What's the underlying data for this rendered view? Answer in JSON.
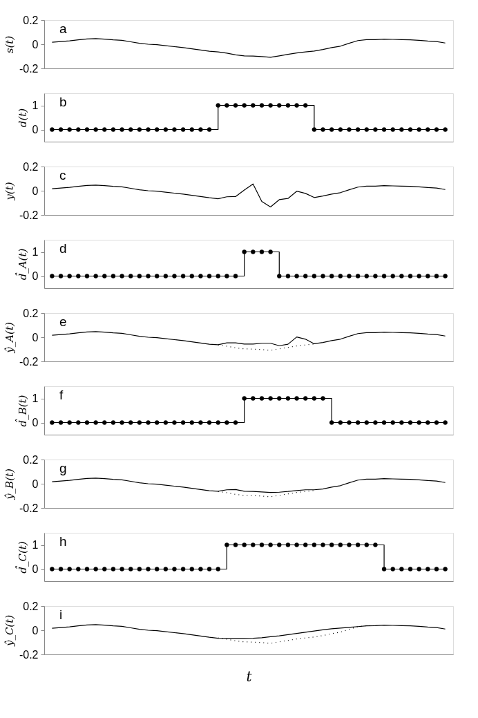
{
  "chart_data": [
    {
      "type": "line",
      "ylabel": "s(t)",
      "annotations": [
        "a"
      ],
      "ylim": [
        -0.2,
        0.2
      ],
      "yticks": [
        -0.2,
        0,
        0.2
      ],
      "tick_labels": "y",
      "categories": [
        null,
        null,
        null,
        null,
        null,
        null,
        null,
        null,
        null,
        null,
        null,
        null,
        null,
        null,
        null,
        null,
        null,
        null,
        null,
        null,
        null,
        null,
        null,
        null,
        null,
        null,
        null,
        null,
        null,
        null,
        null,
        null,
        null,
        null,
        null,
        null,
        null,
        null,
        null,
        null,
        null,
        null,
        null,
        null,
        null,
        null
      ],
      "series": [
        {
          "color": "#000000",
          "values": [
            0.016,
            0.022,
            0.028,
            0.036,
            0.044,
            0.046,
            0.042,
            0.036,
            0.032,
            0.02,
            0.008,
            0,
            -0.004,
            -0.012,
            -0.02,
            -0.028,
            -0.038,
            -0.048,
            -0.058,
            -0.064,
            -0.074,
            -0.088,
            -0.096,
            -0.098,
            -0.102,
            -0.108,
            -0.096,
            -0.084,
            -0.072,
            -0.064,
            -0.056,
            -0.044,
            -0.028,
            -0.016,
            0.008,
            0.03,
            0.038,
            0.038,
            0.042,
            0.04,
            0.038,
            0.036,
            0.032,
            0.026,
            0.022,
            0.01
          ]
        }
      ]
    },
    {
      "type": "step",
      "ylabel": "d(t)",
      "annotations": [
        "b"
      ],
      "marker": "circle",
      "ylim": [
        -0.5,
        1.5
      ],
      "yticks": [
        0,
        1
      ],
      "tick_labels": "y",
      "categories": [
        null,
        null,
        null,
        null,
        null,
        null,
        null,
        null,
        null,
        null,
        null,
        null,
        null,
        null,
        null,
        null,
        null,
        null,
        null,
        null,
        null,
        null,
        null,
        null,
        null,
        null,
        null,
        null,
        null,
        null,
        null,
        null,
        null,
        null,
        null,
        null,
        null,
        null,
        null,
        null,
        null,
        null,
        null,
        null,
        null,
        null
      ],
      "series": [
        {
          "color": "#000000",
          "values": [
            0,
            0,
            0,
            0,
            0,
            0,
            0,
            0,
            0,
            0,
            0,
            0,
            0,
            0,
            0,
            0,
            0,
            0,
            0,
            1,
            1,
            1,
            1,
            1,
            1,
            1,
            1,
            1,
            1,
            1,
            0,
            0,
            0,
            0,
            0,
            0,
            0,
            0,
            0,
            0,
            0,
            0,
            0,
            0,
            0,
            0
          ]
        }
      ]
    },
    {
      "type": "line",
      "ylabel": "y(t)",
      "annotations": [
        "c"
      ],
      "ylim": [
        -0.2,
        0.2
      ],
      "yticks": [
        -0.2,
        0,
        0.2
      ],
      "tick_labels": "y",
      "categories": [
        null,
        null,
        null,
        null,
        null,
        null,
        null,
        null,
        null,
        null,
        null,
        null,
        null,
        null,
        null,
        null,
        null,
        null,
        null,
        null,
        null,
        null,
        null,
        null,
        null,
        null,
        null,
        null,
        null,
        null,
        null,
        null,
        null,
        null,
        null,
        null,
        null,
        null,
        null,
        null,
        null,
        null,
        null,
        null,
        null,
        null
      ],
      "series": [
        {
          "color": "#000000",
          "values": [
            0.016,
            0.022,
            0.028,
            0.036,
            0.044,
            0.046,
            0.042,
            0.036,
            0.032,
            0.02,
            0.008,
            0,
            -0.004,
            -0.012,
            -0.02,
            -0.028,
            -0.038,
            -0.048,
            -0.058,
            -0.066,
            -0.05,
            -0.048,
            0.006,
            0.056,
            -0.088,
            -0.134,
            -0.074,
            -0.064,
            -0.004,
            -0.022,
            -0.056,
            -0.044,
            -0.028,
            -0.016,
            0.008,
            0.03,
            0.038,
            0.038,
            0.042,
            0.04,
            0.038,
            0.036,
            0.032,
            0.026,
            0.022,
            0.01
          ]
        }
      ]
    },
    {
      "type": "step",
      "ylabel": "d̂_A(t)",
      "annotations": [
        "d"
      ],
      "marker": "circle",
      "ylim": [
        -0.5,
        1.5
      ],
      "yticks": [
        0,
        1
      ],
      "tick_labels": "y",
      "categories": [
        null,
        null,
        null,
        null,
        null,
        null,
        null,
        null,
        null,
        null,
        null,
        null,
        null,
        null,
        null,
        null,
        null,
        null,
        null,
        null,
        null,
        null,
        null,
        null,
        null,
        null,
        null,
        null,
        null,
        null,
        null,
        null,
        null,
        null,
        null,
        null,
        null,
        null,
        null,
        null,
        null,
        null,
        null,
        null,
        null,
        null
      ],
      "series": [
        {
          "color": "#000000",
          "values": [
            0,
            0,
            0,
            0,
            0,
            0,
            0,
            0,
            0,
            0,
            0,
            0,
            0,
            0,
            0,
            0,
            0,
            0,
            0,
            0,
            0,
            0,
            1,
            1,
            1,
            1,
            0,
            0,
            0,
            0,
            0,
            0,
            0,
            0,
            0,
            0,
            0,
            0,
            0,
            0,
            0,
            0,
            0,
            0,
            0,
            0
          ]
        }
      ]
    },
    {
      "type": "line",
      "ylabel": "ŷ_A(t)",
      "annotations": [
        "e"
      ],
      "ylim": [
        -0.2,
        0.2
      ],
      "yticks": [
        -0.2,
        0,
        0.2
      ],
      "tick_labels": "y",
      "categories": [
        null,
        null,
        null,
        null,
        null,
        null,
        null,
        null,
        null,
        null,
        null,
        null,
        null,
        null,
        null,
        null,
        null,
        null,
        null,
        null,
        null,
        null,
        null,
        null,
        null,
        null,
        null,
        null,
        null,
        null,
        null,
        null,
        null,
        null,
        null,
        null,
        null,
        null,
        null,
        null,
        null,
        null,
        null,
        null,
        null,
        null
      ],
      "series": [
        {
          "color": "#000000",
          "values": [
            0.016,
            0.022,
            0.028,
            0.036,
            0.044,
            0.046,
            0.042,
            0.036,
            0.032,
            0.02,
            0.008,
            0,
            -0.004,
            -0.012,
            -0.02,
            -0.028,
            -0.038,
            -0.048,
            -0.058,
            -0.062,
            -0.046,
            -0.046,
            -0.056,
            -0.056,
            -0.05,
            -0.05,
            -0.07,
            -0.058,
            0.002,
            -0.016,
            -0.054,
            -0.044,
            -0.028,
            -0.016,
            0.008,
            0.03,
            0.038,
            0.038,
            0.042,
            0.04,
            0.038,
            0.036,
            0.032,
            0.026,
            0.022,
            0.01
          ]
        },
        {
          "color": "#000000",
          "line_style": "dotted",
          "values": [
            null,
            null,
            null,
            null,
            null,
            null,
            null,
            null,
            null,
            null,
            null,
            null,
            null,
            null,
            null,
            null,
            null,
            null,
            null,
            -0.064,
            -0.074,
            -0.088,
            -0.096,
            -0.098,
            -0.102,
            -0.108,
            -0.096,
            -0.084,
            -0.072,
            -0.064,
            -0.056,
            null,
            null,
            null,
            null,
            null,
            null,
            null,
            null,
            null,
            null,
            null,
            null,
            null,
            null,
            null
          ]
        }
      ]
    },
    {
      "type": "step",
      "ylabel": "d̂_B(t)",
      "annotations": [
        "f"
      ],
      "marker": "circle",
      "ylim": [
        -0.5,
        1.5
      ],
      "yticks": [
        0,
        1
      ],
      "tick_labels": "y",
      "categories": [
        null,
        null,
        null,
        null,
        null,
        null,
        null,
        null,
        null,
        null,
        null,
        null,
        null,
        null,
        null,
        null,
        null,
        null,
        null,
        null,
        null,
        null,
        null,
        null,
        null,
        null,
        null,
        null,
        null,
        null,
        null,
        null,
        null,
        null,
        null,
        null,
        null,
        null,
        null,
        null,
        null,
        null,
        null,
        null,
        null,
        null
      ],
      "series": [
        {
          "color": "#000000",
          "values": [
            0,
            0,
            0,
            0,
            0,
            0,
            0,
            0,
            0,
            0,
            0,
            0,
            0,
            0,
            0,
            0,
            0,
            0,
            0,
            0,
            0,
            0,
            1,
            1,
            1,
            1,
            1,
            1,
            1,
            1,
            1,
            1,
            0,
            0,
            0,
            0,
            0,
            0,
            0,
            0,
            0,
            0,
            0,
            0,
            0,
            0
          ]
        }
      ]
    },
    {
      "type": "line",
      "ylabel": "ŷ_B(t)",
      "annotations": [
        "g"
      ],
      "ylim": [
        -0.2,
        0.2
      ],
      "yticks": [
        -0.2,
        0,
        0.2
      ],
      "tick_labels": "y",
      "categories": [
        null,
        null,
        null,
        null,
        null,
        null,
        null,
        null,
        null,
        null,
        null,
        null,
        null,
        null,
        null,
        null,
        null,
        null,
        null,
        null,
        null,
        null,
        null,
        null,
        null,
        null,
        null,
        null,
        null,
        null,
        null,
        null,
        null,
        null,
        null,
        null,
        null,
        null,
        null,
        null,
        null,
        null,
        null,
        null,
        null,
        null
      ],
      "series": [
        {
          "color": "#000000",
          "values": [
            0.016,
            0.022,
            0.028,
            0.036,
            0.044,
            0.046,
            0.042,
            0.036,
            0.032,
            0.02,
            0.008,
            0,
            -0.004,
            -0.012,
            -0.02,
            -0.028,
            -0.038,
            -0.048,
            -0.058,
            -0.062,
            -0.05,
            -0.048,
            -0.062,
            -0.064,
            -0.068,
            -0.072,
            -0.07,
            -0.064,
            -0.056,
            -0.05,
            -0.05,
            -0.044,
            -0.028,
            -0.016,
            0.008,
            0.03,
            0.038,
            0.038,
            0.042,
            0.04,
            0.038,
            0.036,
            0.032,
            0.026,
            0.022,
            0.01
          ]
        },
        {
          "color": "#000000",
          "line_style": "dotted",
          "values": [
            null,
            null,
            null,
            null,
            null,
            null,
            null,
            null,
            null,
            null,
            null,
            null,
            null,
            null,
            null,
            null,
            null,
            null,
            null,
            -0.064,
            -0.074,
            -0.088,
            -0.096,
            -0.098,
            -0.102,
            -0.108,
            -0.096,
            -0.084,
            -0.072,
            -0.064,
            -0.056,
            null,
            null,
            null,
            null,
            null,
            null,
            null,
            null,
            null,
            null,
            null,
            null,
            null,
            null,
            null
          ]
        }
      ]
    },
    {
      "type": "step",
      "ylabel": "d̂_C(t)",
      "annotations": [
        "h"
      ],
      "marker": "circle",
      "ylim": [
        -0.5,
        1.5
      ],
      "yticks": [
        0,
        1
      ],
      "tick_labels": "y",
      "categories": [
        null,
        null,
        null,
        null,
        null,
        null,
        null,
        null,
        null,
        null,
        null,
        null,
        null,
        null,
        null,
        null,
        null,
        null,
        null,
        null,
        null,
        null,
        null,
        null,
        null,
        null,
        null,
        null,
        null,
        null,
        null,
        null,
        null,
        null,
        null,
        null,
        null,
        null,
        null,
        null,
        null,
        null,
        null,
        null,
        null,
        null
      ],
      "series": [
        {
          "color": "#000000",
          "values": [
            0,
            0,
            0,
            0,
            0,
            0,
            0,
            0,
            0,
            0,
            0,
            0,
            0,
            0,
            0,
            0,
            0,
            0,
            0,
            0,
            1,
            1,
            1,
            1,
            1,
            1,
            1,
            1,
            1,
            1,
            1,
            1,
            1,
            1,
            1,
            1,
            1,
            1,
            0,
            0,
            0,
            0,
            0,
            0,
            0,
            0
          ]
        }
      ]
    },
    {
      "type": "line",
      "ylabel": "ŷ_C(t)",
      "xlabel": "t",
      "annotations": [
        "i"
      ],
      "ylim": [
        -0.2,
        0.2
      ],
      "yticks": [
        -0.2,
        0,
        0.2
      ],
      "tick_labels": "y",
      "categories": [
        null,
        null,
        null,
        null,
        null,
        null,
        null,
        null,
        null,
        null,
        null,
        null,
        null,
        null,
        null,
        null,
        null,
        null,
        null,
        null,
        null,
        null,
        null,
        null,
        null,
        null,
        null,
        null,
        null,
        null,
        null,
        null,
        null,
        null,
        null,
        null,
        null,
        null,
        null,
        null,
        null,
        null,
        null,
        null,
        null,
        null
      ],
      "series": [
        {
          "color": "#000000",
          "values": [
            0.016,
            0.022,
            0.028,
            0.036,
            0.044,
            0.046,
            0.042,
            0.036,
            0.032,
            0.02,
            0.008,
            0,
            -0.004,
            -0.012,
            -0.02,
            -0.028,
            -0.038,
            -0.048,
            -0.058,
            -0.066,
            -0.068,
            -0.068,
            -0.068,
            -0.066,
            -0.062,
            -0.054,
            -0.046,
            -0.036,
            -0.026,
            -0.016,
            -0.006,
            0.004,
            0.012,
            0.018,
            0.024,
            0.03,
            0.036,
            0.038,
            0.042,
            0.04,
            0.038,
            0.036,
            0.032,
            0.026,
            0.022,
            0.01
          ]
        },
        {
          "color": "#000000",
          "line_style": "dotted",
          "values": [
            null,
            null,
            null,
            null,
            null,
            null,
            null,
            null,
            null,
            null,
            null,
            null,
            null,
            null,
            null,
            null,
            null,
            null,
            null,
            -0.064,
            -0.074,
            -0.088,
            -0.096,
            -0.098,
            -0.102,
            -0.108,
            -0.096,
            -0.084,
            -0.072,
            -0.064,
            -0.056,
            -0.044,
            -0.028,
            -0.016,
            0.008,
            0.03,
            0.038,
            0.038,
            null,
            null,
            null,
            null,
            null,
            null,
            null,
            null
          ]
        }
      ]
    }
  ]
}
